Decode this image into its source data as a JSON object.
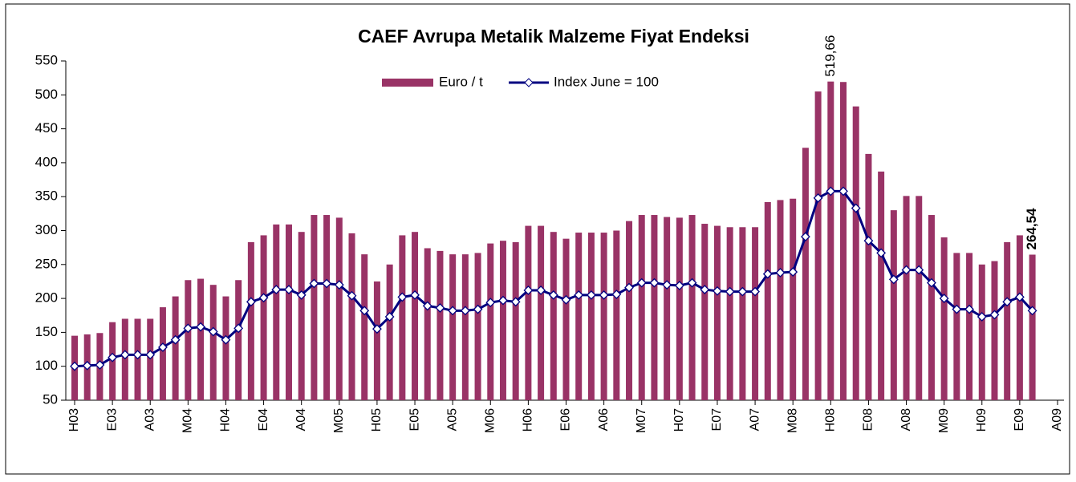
{
  "chart_data": {
    "type": "bar_line",
    "title": "CAEF Avrupa Metalik Malzeme Fiyat Endeksi",
    "categories": [
      "H03",
      null,
      null,
      "E03",
      null,
      null,
      "A03",
      null,
      null,
      "M04",
      null,
      null,
      "H04",
      null,
      null,
      "E04",
      null,
      null,
      "A04",
      null,
      null,
      "M05",
      null,
      null,
      "H05",
      null,
      null,
      "E05",
      null,
      null,
      "A05",
      null,
      null,
      "M06",
      null,
      null,
      "H06",
      null,
      null,
      "E06",
      null,
      null,
      "A06",
      null,
      null,
      "M07",
      null,
      null,
      "H07",
      null,
      null,
      "E07",
      null,
      null,
      "A07",
      null,
      null,
      "M08",
      null,
      null,
      "H08",
      null,
      null,
      "E08",
      null,
      null,
      "A08",
      null,
      null,
      "M09",
      null,
      null,
      "H09",
      null,
      null,
      "E09",
      null,
      null,
      "A09"
    ],
    "series": [
      {
        "name": "Euro / t",
        "type": "bar",
        "color": "#993366",
        "values": [
          145,
          147,
          149,
          165,
          170,
          170,
          170,
          187,
          203,
          227,
          229,
          220,
          203,
          227,
          283,
          293,
          309,
          309,
          298,
          323,
          323,
          319,
          296,
          265,
          225,
          250,
          293,
          298,
          274,
          270,
          265,
          265,
          267,
          281,
          285,
          283,
          307,
          307,
          298,
          288,
          297,
          297,
          297,
          300,
          314,
          323,
          323,
          320,
          319,
          323,
          310,
          307,
          305,
          305,
          305,
          342,
          345,
          347,
          422,
          505,
          519.66,
          519,
          483,
          413,
          387,
          330,
          351,
          351,
          323,
          290,
          267,
          267,
          250,
          255,
          283,
          293,
          264.54,
          null,
          null
        ],
        "value_labels": [
          null,
          null,
          null,
          null,
          null,
          null,
          null,
          null,
          null,
          null,
          null,
          null,
          null,
          null,
          null,
          null,
          null,
          null,
          null,
          null,
          null,
          null,
          null,
          null,
          null,
          null,
          null,
          null,
          null,
          null,
          null,
          null,
          null,
          null,
          null,
          null,
          null,
          null,
          null,
          null,
          null,
          null,
          null,
          null,
          null,
          null,
          null,
          null,
          null,
          null,
          null,
          null,
          null,
          null,
          null,
          null,
          null,
          null,
          null,
          null,
          "519,66",
          null,
          null,
          null,
          null,
          null,
          null,
          null,
          null,
          null,
          null,
          null,
          null,
          null,
          null,
          null,
          "264,54",
          null,
          null
        ]
      },
      {
        "name": "Index June = 100",
        "type": "line",
        "color": "#000080",
        "values": [
          100,
          101,
          102,
          113,
          117,
          117,
          117,
          128,
          139,
          156,
          158,
          151,
          139,
          156,
          195,
          201,
          213,
          213,
          205,
          222,
          222,
          220,
          204,
          182,
          155,
          173,
          202,
          205,
          189,
          186,
          182,
          182,
          184,
          194,
          197,
          195,
          212,
          212,
          205,
          198,
          205,
          205,
          205,
          206,
          216,
          223,
          223,
          220,
          219,
          223,
          213,
          211,
          210,
          210,
          210,
          236,
          238,
          239,
          291,
          348,
          358,
          358,
          333,
          285,
          267,
          228,
          242,
          242,
          223,
          200,
          184,
          184,
          173,
          176,
          195,
          202,
          182,
          null,
          null
        ]
      }
    ],
    "ylim": [
      50,
      550
    ],
    "yticks": [
      50,
      100,
      150,
      200,
      250,
      300,
      350,
      400,
      450,
      500,
      550
    ]
  }
}
